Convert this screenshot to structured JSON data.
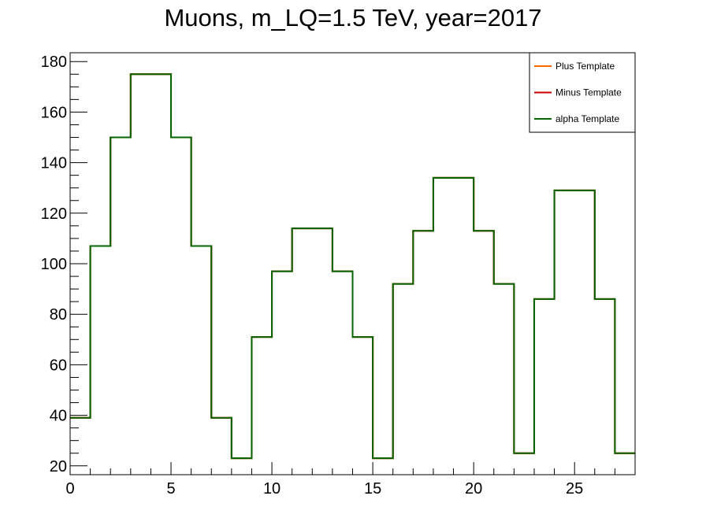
{
  "chart_data": {
    "type": "line",
    "title": "Muons, m_LQ=1.5 TeV, year=2017",
    "xlabel": "",
    "ylabel": "",
    "xlim": [
      0,
      28
    ],
    "ylim": [
      16.5,
      183.5
    ],
    "xticks": [
      0,
      5,
      10,
      15,
      20,
      25
    ],
    "yticks": [
      20,
      40,
      60,
      80,
      100,
      120,
      140,
      160,
      180
    ],
    "grid": false,
    "legend_position": "top-right",
    "bin_edges": [
      0,
      1,
      2,
      3,
      4,
      5,
      6,
      7,
      8,
      9,
      10,
      11,
      12,
      13,
      14,
      15,
      16,
      17,
      18,
      19,
      20,
      21,
      22,
      23,
      24,
      25,
      26,
      27,
      28
    ],
    "series": [
      {
        "name": "Plus Template",
        "color": "#ff6600",
        "values": [
          39,
          107,
          150,
          175,
          175,
          150,
          107,
          39,
          23,
          71,
          97,
          114,
          114,
          97,
          71,
          23,
          92,
          113,
          134,
          134,
          113,
          92,
          25,
          86,
          129,
          129,
          86,
          25
        ]
      },
      {
        "name": "Minus Template",
        "color": "#cc0000",
        "values": [
          39,
          107,
          150,
          175,
          175,
          150,
          107,
          39,
          23,
          71,
          97,
          114,
          114,
          97,
          71,
          23,
          92,
          113,
          134,
          134,
          113,
          92,
          25,
          86,
          129,
          129,
          86,
          25
        ]
      },
      {
        "name": "alpha Template",
        "color": "#006600",
        "values": [
          39,
          107,
          150,
          175,
          175,
          150,
          107,
          39,
          23,
          71,
          97,
          114,
          114,
          97,
          71,
          23,
          92,
          113,
          134,
          134,
          113,
          92,
          25,
          86,
          129,
          129,
          86,
          25
        ]
      }
    ]
  }
}
